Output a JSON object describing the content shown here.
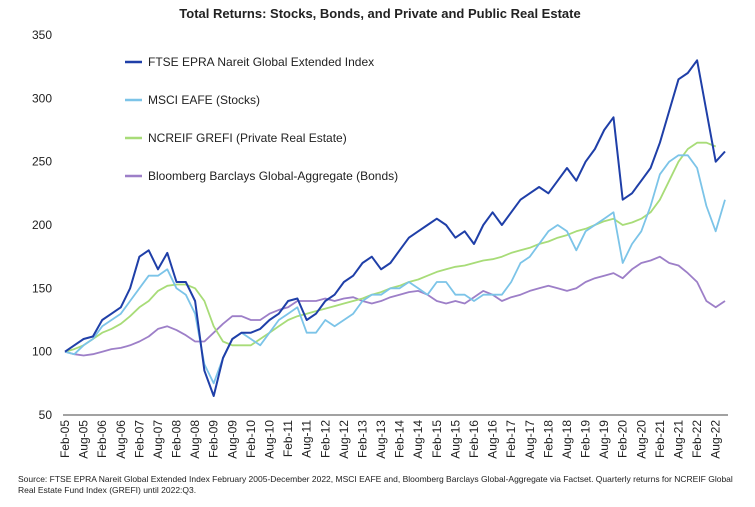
{
  "chart_data": {
    "type": "line",
    "title": "Total Returns: Stocks, Bonds, and Private and Public Real Estate",
    "categories": [
      "Feb-05",
      null,
      "Aug-05",
      null,
      "Feb-06",
      null,
      "Aug-06",
      null,
      "Feb-07",
      null,
      "Aug-07",
      null,
      "Feb-08",
      null,
      "Aug-08",
      null,
      "Feb-09",
      null,
      "Aug-09",
      null,
      "Feb-10",
      null,
      "Aug-10",
      null,
      "Feb-11",
      null,
      "Aug-11",
      null,
      "Feb-12",
      null,
      "Aug-12",
      null,
      "Feb-13",
      null,
      "Aug-13",
      null,
      "Feb-14",
      null,
      "Aug-14",
      null,
      "Feb-15",
      null,
      "Aug-15",
      null,
      "Feb-16",
      null,
      "Aug-16",
      null,
      "Feb-17",
      null,
      "Aug-17",
      null,
      "Feb-18",
      null,
      "Aug-18",
      null,
      "Feb-19",
      null,
      "Aug-19",
      null,
      "Feb-20",
      null,
      "Aug-20",
      null,
      "Feb-21",
      null,
      "Aug-21",
      null,
      "Feb-22",
      null,
      "Aug-22",
      null
    ],
    "series": [
      {
        "name": "FTSE EPRA Nareit Global Extended Index",
        "color": "#1f3fa8",
        "values": [
          100,
          105,
          110,
          112,
          125,
          130,
          135,
          150,
          175,
          180,
          165,
          178,
          155,
          155,
          140,
          85,
          65,
          95,
          110,
          115,
          115,
          118,
          125,
          130,
          140,
          142,
          125,
          130,
          140,
          145,
          155,
          160,
          170,
          175,
          165,
          170,
          180,
          190,
          195,
          200,
          205,
          200,
          190,
          195,
          185,
          200,
          210,
          200,
          210,
          220,
          225,
          230,
          225,
          235,
          245,
          235,
          250,
          260,
          275,
          285,
          220,
          225,
          235,
          245,
          265,
          290,
          315,
          320,
          330,
          290,
          250,
          258
        ]
      },
      {
        "name": "MSCI EAFE (Stocks)",
        "color": "#7cc4e8",
        "values": [
          100,
          98,
          105,
          110,
          120,
          125,
          130,
          140,
          150,
          160,
          160,
          165,
          150,
          145,
          130,
          90,
          75,
          95,
          110,
          115,
          110,
          105,
          115,
          125,
          130,
          135,
          115,
          115,
          125,
          120,
          125,
          130,
          140,
          145,
          145,
          150,
          150,
          155,
          150,
          145,
          155,
          155,
          145,
          145,
          140,
          145,
          145,
          145,
          155,
          170,
          175,
          185,
          195,
          200,
          195,
          180,
          195,
          200,
          205,
          210,
          170,
          185,
          195,
          215,
          240,
          250,
          255,
          255,
          245,
          215,
          195,
          220
        ]
      },
      {
        "name": "NCREIF GREFI (Private Real Estate)",
        "color": "#a8dc78",
        "values": [
          100,
          102,
          105,
          110,
          115,
          118,
          122,
          128,
          135,
          140,
          148,
          152,
          153,
          153,
          150,
          140,
          120,
          108,
          105,
          105,
          105,
          110,
          115,
          120,
          125,
          128,
          130,
          132,
          134,
          136,
          138,
          140,
          142,
          145,
          147,
          150,
          152,
          155,
          157,
          160,
          163,
          165,
          167,
          168,
          170,
          172,
          173,
          175,
          178,
          180,
          182,
          185,
          187,
          190,
          192,
          195,
          197,
          200,
          203,
          205,
          200,
          202,
          205,
          210,
          220,
          235,
          250,
          260,
          265,
          265,
          262,
          null
        ]
      },
      {
        "name": "Bloomberg Barclays Global-Aggregate (Bonds)",
        "color": "#9d7fc8",
        "values": [
          100,
          98,
          97,
          98,
          100,
          102,
          103,
          105,
          108,
          112,
          118,
          120,
          117,
          113,
          108,
          108,
          115,
          122,
          128,
          128,
          125,
          125,
          130,
          133,
          135,
          140,
          140,
          140,
          142,
          140,
          142,
          143,
          140,
          138,
          140,
          143,
          145,
          147,
          148,
          145,
          140,
          138,
          140,
          138,
          143,
          148,
          145,
          140,
          143,
          145,
          148,
          150,
          152,
          150,
          148,
          150,
          155,
          158,
          160,
          162,
          158,
          165,
          170,
          172,
          175,
          170,
          168,
          162,
          155,
          140,
          135,
          140
        ]
      }
    ],
    "ylim": [
      50,
      350
    ],
    "yticks": [
      50,
      100,
      150,
      200,
      250,
      300,
      350
    ],
    "source": "Source: FTSE EPRA Nareit Global Extended Index February 2005-December 2022, MSCI EAFE and, Bloomberg Barclays Global-Aggregate via Factset. Quarterly returns for NCREIF Global Real Estate Fund Index (GREFI) until 2022:Q3."
  }
}
